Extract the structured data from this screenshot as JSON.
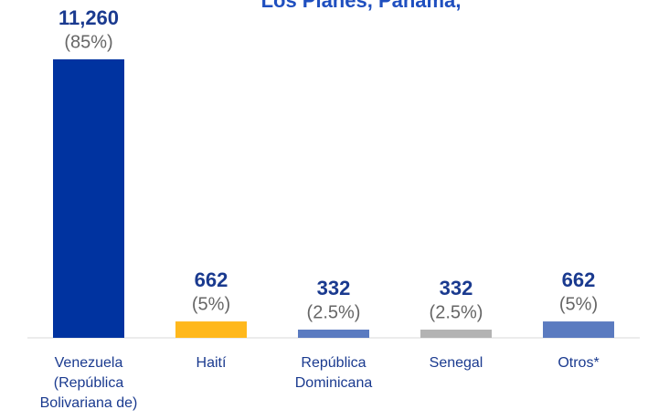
{
  "chart_data": {
    "type": "bar",
    "title": "Los Planes, Panamá,",
    "categories": [
      [
        "Venezuela",
        "(República",
        "Bolivariana de)"
      ],
      [
        "Haití"
      ],
      [
        "República",
        "Dominicana"
      ],
      [
        "Senegal"
      ],
      [
        "Otros*"
      ]
    ],
    "values": [
      11260,
      662,
      332,
      332,
      662
    ],
    "value_labels": [
      "11,260",
      "662",
      "332",
      "332",
      "662"
    ],
    "shares": [
      85,
      5,
      2.5,
      2.5,
      5
    ],
    "share_labels": [
      "(85%)",
      "(5%)",
      "(2.5%)",
      "(2.5%)",
      "(5%)"
    ],
    "colors": [
      "#0033a0",
      "#ffb81c",
      "#5b7bc0",
      "#b3b3b3",
      "#5b7bc0"
    ],
    "ylim": [
      0,
      11260
    ]
  }
}
